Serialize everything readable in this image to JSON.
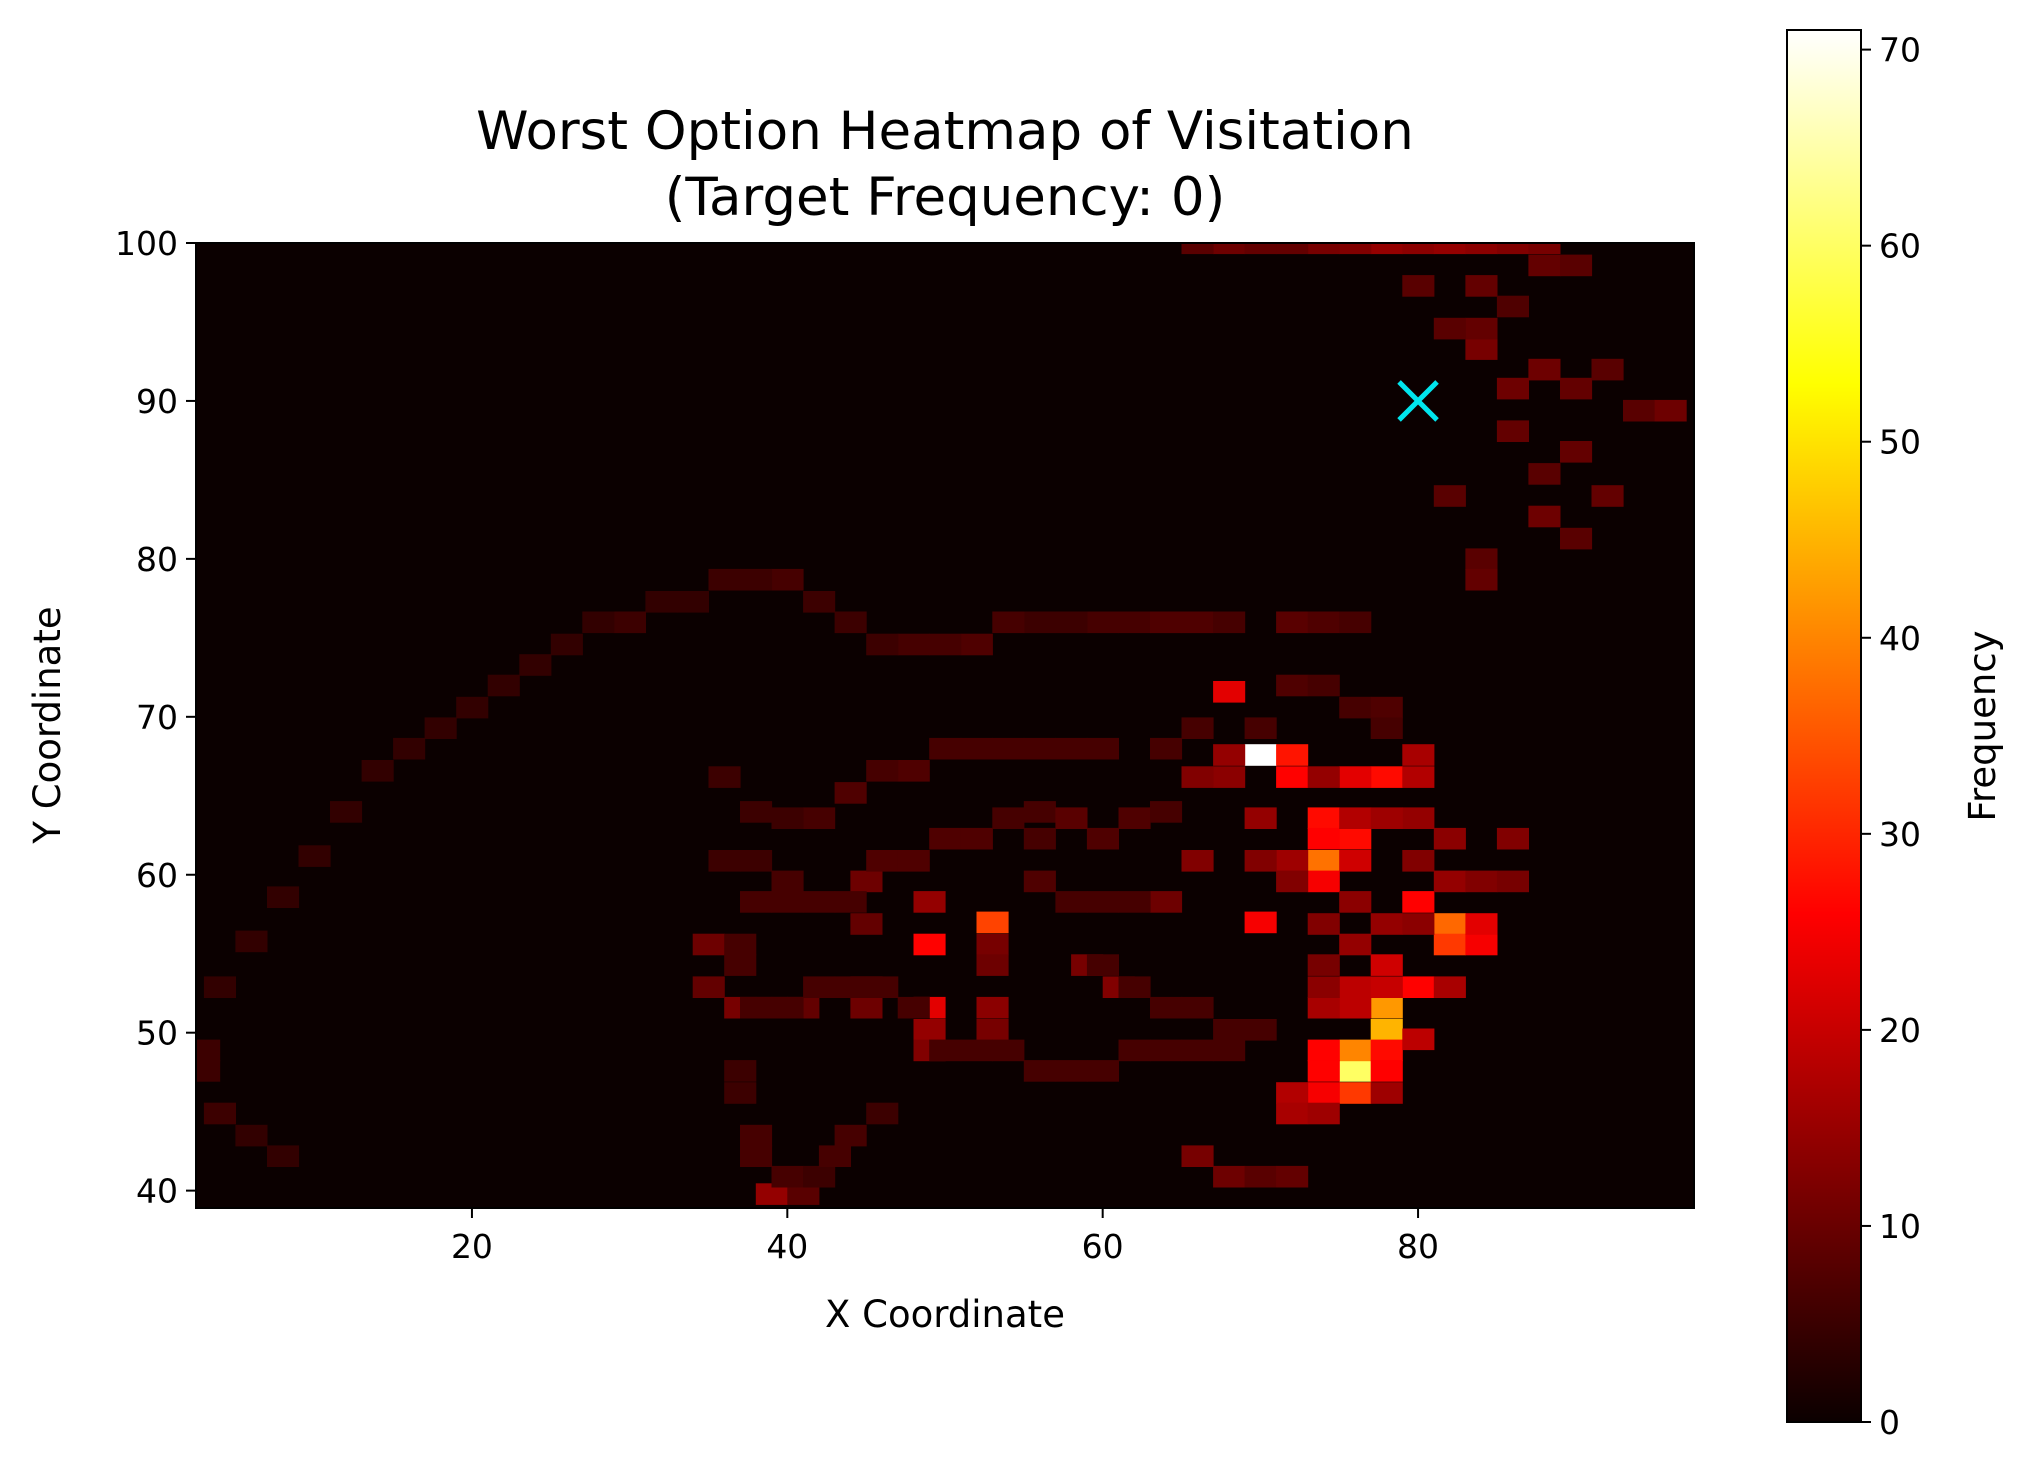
{
  "chart_data": {
    "type": "heatmap",
    "title": "Worst Option Heatmap of Visitation",
    "subtitle": "(Target Frequency: 0)",
    "xlabel": "X Coordinate",
    "ylabel": "Y Coordinate",
    "xlim": [
      2.5,
      97.5
    ],
    "ylim": [
      38.9,
      100
    ],
    "xticks": [
      20,
      40,
      60,
      80
    ],
    "yticks": [
      40,
      50,
      60,
      70,
      80,
      90,
      100
    ],
    "cell_size": [
      2,
      1.33
    ],
    "colormap": "hot",
    "colorbar": {
      "label": "Frequency",
      "min": 0,
      "max": 71,
      "ticks": [
        0,
        10,
        20,
        30,
        40,
        50,
        60,
        70
      ]
    },
    "target_marker": {
      "x": 80,
      "y": 90,
      "symbol": "x",
      "color": "#00e5ee"
    },
    "grid": false,
    "cells": [
      [
        70,
        67.6,
        71
      ],
      [
        76,
        47.6,
        60
      ],
      [
        76,
        48.9,
        40
      ],
      [
        78,
        50.2,
        45
      ],
      [
        78,
        51.6,
        42
      ],
      [
        74,
        60.9,
        38
      ],
      [
        82,
        56.9,
        37
      ],
      [
        82,
        55.6,
        32
      ],
      [
        76,
        46.2,
        32
      ],
      [
        53,
        57,
        33
      ],
      [
        72,
        67.6,
        28
      ],
      [
        72,
        66.2,
        26
      ],
      [
        78,
        66.2,
        27
      ],
      [
        74,
        63.6,
        27
      ],
      [
        76,
        62.3,
        27
      ],
      [
        74,
        62.3,
        25
      ],
      [
        74,
        59.6,
        24
      ],
      [
        70,
        57,
        24
      ],
      [
        74,
        48.9,
        26
      ],
      [
        74,
        47.6,
        26
      ],
      [
        78,
        48.9,
        27
      ],
      [
        78,
        47.6,
        25
      ],
      [
        74,
        46.2,
        24
      ],
      [
        80,
        52.9,
        26
      ],
      [
        80,
        58.3,
        25
      ],
      [
        84,
        55.6,
        24
      ],
      [
        84,
        56.9,
        22
      ],
      [
        49,
        55.6,
        26
      ],
      [
        49,
        51.6,
        22
      ],
      [
        68,
        71.6,
        22
      ],
      [
        76,
        66.2,
        22
      ],
      [
        76,
        60.9,
        20
      ],
      [
        78,
        54.3,
        20
      ],
      [
        76,
        52.9,
        18
      ],
      [
        78,
        52.9,
        19
      ],
      [
        76,
        51.6,
        18
      ],
      [
        74,
        51.6,
        16
      ],
      [
        82,
        52.9,
        16
      ],
      [
        80,
        63.6,
        14
      ],
      [
        80,
        67.6,
        16
      ],
      [
        80,
        66.2,
        17
      ],
      [
        76,
        63.6,
        17
      ],
      [
        72,
        60.9,
        15
      ],
      [
        68,
        67.6,
        14
      ],
      [
        68,
        66.2,
        13
      ],
      [
        80,
        49.6,
        18
      ],
      [
        78,
        46.2,
        15
      ],
      [
        72,
        46.2,
        17
      ],
      [
        72,
        44.9,
        16
      ],
      [
        74,
        44.9,
        15
      ],
      [
        78,
        63.6,
        15
      ],
      [
        74,
        66.2,
        14
      ],
      [
        78,
        56.9,
        14
      ],
      [
        80,
        56.9,
        13
      ],
      [
        82,
        59.6,
        14
      ],
      [
        84,
        59.6,
        12
      ],
      [
        86,
        62.3,
        12
      ],
      [
        86,
        59.6,
        11
      ],
      [
        82,
        62.3,
        13
      ],
      [
        80,
        60.9,
        12
      ],
      [
        76,
        58.3,
        13
      ],
      [
        74,
        56.9,
        12
      ],
      [
        76,
        55.6,
        14
      ],
      [
        74,
        54.3,
        11
      ],
      [
        74,
        52.9,
        13
      ],
      [
        70,
        63.6,
        14
      ],
      [
        70,
        60.9,
        12
      ],
      [
        72,
        59.6,
        12
      ],
      [
        66,
        60.9,
        12
      ],
      [
        66,
        66.2,
        12
      ],
      [
        64,
        58.3,
        10
      ],
      [
        49,
        58.3,
        14
      ],
      [
        49,
        50.2,
        14
      ],
      [
        49,
        48.9,
        12
      ],
      [
        45,
        52.9,
        14
      ],
      [
        45,
        51.6,
        10
      ],
      [
        53,
        51.6,
        13
      ],
      [
        53,
        50.2,
        11
      ],
      [
        53,
        55.6,
        11
      ],
      [
        53,
        54.3,
        10
      ],
      [
        59,
        54.3,
        11
      ],
      [
        61,
        52.9,
        12
      ],
      [
        45,
        59.6,
        10
      ],
      [
        45,
        56.9,
        9
      ],
      [
        39,
        39.8,
        14
      ],
      [
        41,
        39.8,
        8
      ],
      [
        37,
        51.6,
        11
      ],
      [
        39,
        51.6,
        10
      ],
      [
        41,
        51.6,
        9
      ],
      [
        35,
        52.9,
        9
      ],
      [
        35,
        55.6,
        10
      ],
      [
        66,
        42.2,
        11
      ],
      [
        68,
        40.9,
        10
      ],
      [
        70,
        40.9,
        8
      ],
      [
        72,
        40.9,
        9
      ],
      [
        78,
        100,
        14
      ],
      [
        80,
        100,
        13
      ],
      [
        82,
        100,
        14
      ],
      [
        84,
        100,
        13
      ],
      [
        86,
        100,
        12
      ],
      [
        88,
        100,
        11
      ],
      [
        76,
        100,
        12
      ],
      [
        74,
        100,
        11
      ],
      [
        72,
        100,
        9
      ],
      [
        68,
        100,
        10
      ],
      [
        70,
        100,
        9
      ],
      [
        66,
        100,
        8
      ],
      [
        84,
        93.3,
        11
      ],
      [
        84,
        94.6,
        9
      ],
      [
        82,
        94.6,
        8
      ],
      [
        86,
        90.8,
        10
      ],
      [
        88,
        92,
        10
      ],
      [
        90,
        90.8,
        9
      ],
      [
        92,
        92,
        8
      ],
      [
        86,
        88.1,
        9
      ],
      [
        94,
        89.4,
        8
      ],
      [
        96,
        89.4,
        10
      ],
      [
        88,
        85.4,
        8
      ],
      [
        90,
        86.8,
        9
      ],
      [
        92,
        84,
        9
      ],
      [
        88,
        82.7,
        10
      ],
      [
        90,
        81.3,
        8
      ],
      [
        84,
        80,
        8
      ],
      [
        84,
        78.7,
        9
      ],
      [
        82,
        84,
        8
      ],
      [
        88,
        98.6,
        9
      ],
      [
        90,
        98.6,
        8
      ],
      [
        80,
        97.3,
        8
      ],
      [
        84,
        97.3,
        9
      ],
      [
        86,
        96,
        7
      ],
      [
        60,
        76,
        6
      ],
      [
        62,
        76,
        6
      ],
      [
        64,
        76,
        7
      ],
      [
        66,
        76,
        7
      ],
      [
        68,
        76,
        6
      ],
      [
        72,
        76,
        8
      ],
      [
        74,
        76,
        7
      ],
      [
        76,
        76,
        6
      ],
      [
        58,
        76,
        5
      ],
      [
        56,
        76,
        5
      ],
      [
        54,
        76,
        6
      ],
      [
        52,
        74.6,
        7
      ],
      [
        50,
        74.6,
        6
      ],
      [
        48,
        74.6,
        6
      ],
      [
        46,
        74.6,
        5
      ],
      [
        44,
        76,
        5
      ],
      [
        42,
        77.3,
        5
      ],
      [
        40,
        78.7,
        6
      ],
      [
        38,
        78.7,
        5
      ],
      [
        36,
        78.7,
        5
      ],
      [
        34,
        77.3,
        4
      ],
      [
        32,
        77.3,
        4
      ],
      [
        30,
        76,
        5
      ],
      [
        28,
        76,
        4
      ],
      [
        26,
        74.6,
        4
      ],
      [
        24,
        73.3,
        4
      ],
      [
        22,
        72,
        4
      ],
      [
        20,
        70.6,
        4
      ],
      [
        18,
        69.3,
        4
      ],
      [
        16,
        68,
        4
      ],
      [
        14,
        66.6,
        4
      ],
      [
        12,
        64,
        4
      ],
      [
        10,
        61.2,
        4
      ],
      [
        8,
        58.6,
        4
      ],
      [
        6,
        55.8,
        4
      ],
      [
        4,
        52.9,
        4
      ],
      [
        3,
        48.9,
        5
      ],
      [
        3,
        47.6,
        5
      ],
      [
        4,
        44.9,
        5
      ],
      [
        6,
        43.5,
        4
      ],
      [
        8,
        42.2,
        4
      ],
      [
        72,
        72,
        7
      ],
      [
        74,
        72,
        6
      ],
      [
        76,
        70.6,
        6
      ],
      [
        78,
        70.6,
        7
      ],
      [
        78,
        69.3,
        6
      ],
      [
        70,
        69.3,
        6
      ],
      [
        66,
        69.3,
        6
      ],
      [
        64,
        68,
        6
      ],
      [
        60,
        68,
        6
      ],
      [
        58,
        68,
        6
      ],
      [
        56,
        68,
        6
      ],
      [
        54,
        68,
        6
      ],
      [
        52,
        68,
        6
      ],
      [
        50,
        68,
        6
      ],
      [
        48,
        66.6,
        7
      ],
      [
        46,
        66.6,
        6
      ],
      [
        44,
        65.2,
        7
      ],
      [
        42,
        63.6,
        6
      ],
      [
        40,
        63.6,
        5
      ],
      [
        38,
        64,
        5
      ],
      [
        36,
        66.2,
        5
      ],
      [
        36,
        60.9,
        5
      ],
      [
        38,
        60.9,
        5
      ],
      [
        40,
        59.6,
        6
      ],
      [
        42,
        58.3,
        6
      ],
      [
        44,
        58.3,
        6
      ],
      [
        46,
        60.9,
        7
      ],
      [
        48,
        60.9,
        7
      ],
      [
        50,
        62.3,
        7
      ],
      [
        52,
        62.3,
        7
      ],
      [
        54,
        63.6,
        6
      ],
      [
        56,
        64,
        6
      ],
      [
        58,
        63.6,
        8
      ],
      [
        60,
        62.3,
        7
      ],
      [
        62,
        63.6,
        7
      ],
      [
        64,
        64,
        6
      ],
      [
        56,
        62.3,
        6
      ],
      [
        56,
        59.6,
        7
      ],
      [
        58,
        58.3,
        6
      ],
      [
        60,
        58.3,
        6
      ],
      [
        62,
        58.3,
        6
      ],
      [
        60,
        54.3,
        6
      ],
      [
        62,
        52.9,
        6
      ],
      [
        64,
        51.6,
        6
      ],
      [
        66,
        51.6,
        6
      ],
      [
        68,
        50.2,
        6
      ],
      [
        70,
        50.2,
        6
      ],
      [
        68,
        48.9,
        6
      ],
      [
        66,
        48.9,
        6
      ],
      [
        64,
        48.9,
        6
      ],
      [
        62,
        48.9,
        6
      ],
      [
        60,
        47.6,
        6
      ],
      [
        58,
        47.6,
        6
      ],
      [
        56,
        47.6,
        6
      ],
      [
        54,
        48.9,
        6
      ],
      [
        52,
        48.9,
        6
      ],
      [
        50,
        48.9,
        6
      ],
      [
        48,
        51.6,
        6
      ],
      [
        46,
        52.9,
        6
      ],
      [
        44,
        52.9,
        6
      ],
      [
        42,
        52.9,
        6
      ],
      [
        40,
        51.6,
        6
      ],
      [
        38,
        51.6,
        6
      ],
      [
        37,
        54.3,
        6
      ],
      [
        37,
        55.6,
        6
      ],
      [
        38,
        58.3,
        6
      ],
      [
        40,
        58.3,
        6
      ],
      [
        37,
        47.6,
        5
      ],
      [
        37,
        46.2,
        5
      ],
      [
        38,
        43.5,
        6
      ],
      [
        38,
        42.2,
        6
      ],
      [
        40,
        40.9,
        6
      ],
      [
        42,
        40.9,
        5
      ],
      [
        43,
        42.2,
        6
      ],
      [
        44,
        43.5,
        6
      ],
      [
        46,
        44.9,
        5
      ]
    ]
  }
}
